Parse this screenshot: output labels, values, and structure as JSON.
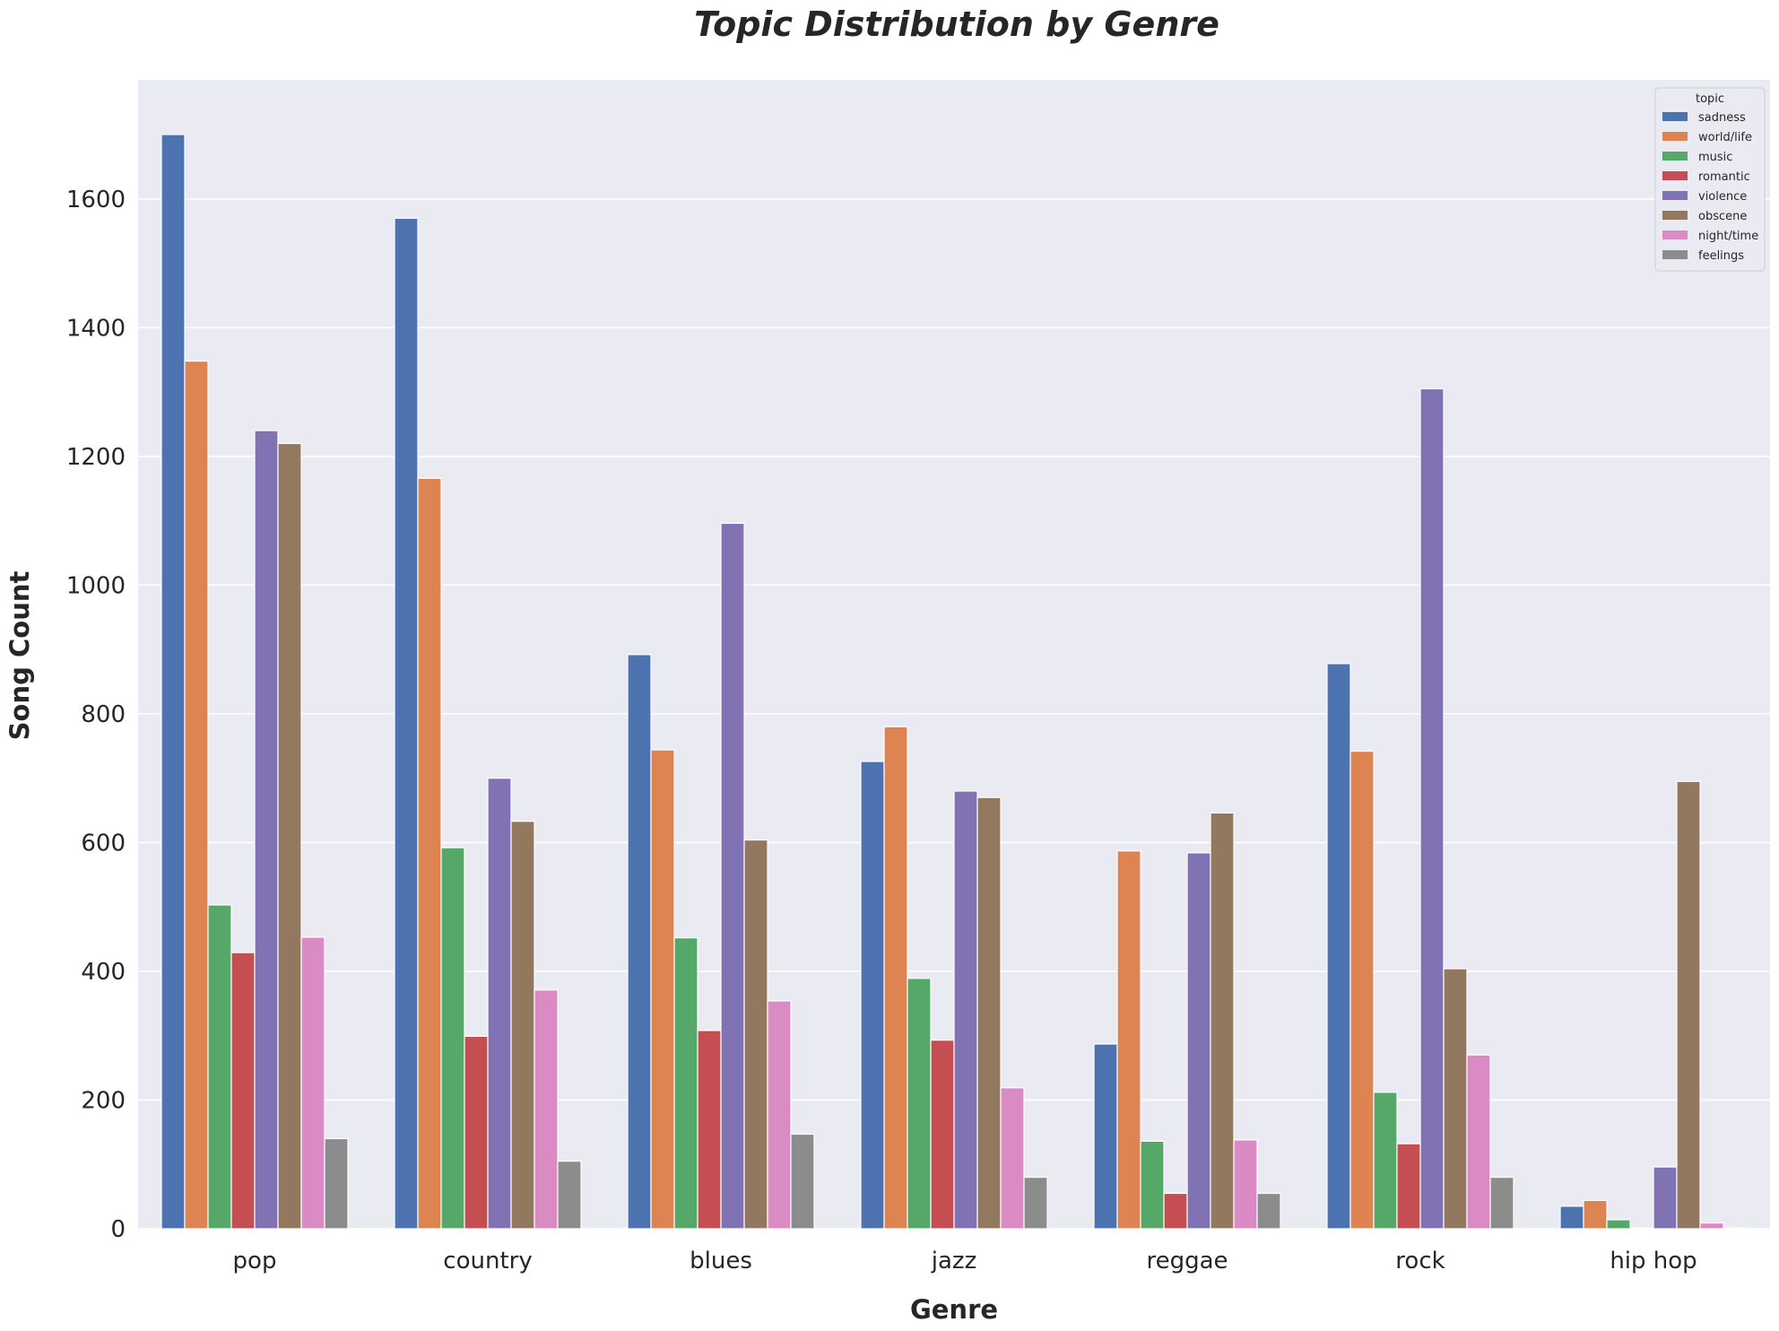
{
  "chart_data": {
    "type": "bar",
    "title": "Topic Distribution by Genre",
    "xlabel": "Genre",
    "ylabel": "Song Count",
    "categories": [
      "pop",
      "country",
      "blues",
      "jazz",
      "reggae",
      "rock",
      "hip hop"
    ],
    "ylim": [
      0,
      1785
    ],
    "yticks": [
      0,
      200,
      400,
      600,
      800,
      1000,
      1200,
      1400,
      1600
    ],
    "ytick_labels": [
      "0",
      "200",
      "400",
      "600",
      "800",
      "1000",
      "1200",
      "1400",
      "1600"
    ],
    "grid": true,
    "legend": {
      "title": "topic",
      "placement": "top-right"
    },
    "series": [
      {
        "name": "sadness",
        "color": "#4C72B0",
        "values": [
          1700,
          1570,
          892,
          726,
          287,
          878,
          35
        ]
      },
      {
        "name": "world/life",
        "color": "#DD8452",
        "values": [
          1348,
          1166,
          744,
          780,
          587,
          742,
          44
        ]
      },
      {
        "name": "music",
        "color": "#55A868",
        "values": [
          503,
          592,
          452,
          389,
          136,
          212,
          14
        ]
      },
      {
        "name": "romantic",
        "color": "#C44E52",
        "values": [
          429,
          299,
          308,
          293,
          55,
          132,
          1
        ]
      },
      {
        "name": "violence",
        "color": "#8172B3",
        "values": [
          1240,
          700,
          1096,
          680,
          584,
          1305,
          96
        ]
      },
      {
        "name": "obscene",
        "color": "#937860",
        "values": [
          1220,
          633,
          604,
          670,
          646,
          404,
          695
        ]
      },
      {
        "name": "night/time",
        "color": "#DA8BC3",
        "values": [
          453,
          371,
          354,
          219,
          138,
          270,
          9
        ]
      },
      {
        "name": "feelings",
        "color": "#8C8C8C",
        "values": [
          140,
          105,
          147,
          80,
          55,
          80,
          1
        ]
      }
    ]
  },
  "style": {
    "plot_background": "#EAEAF2",
    "grid_color": "#FFFFFF",
    "text_color": "#262626"
  }
}
